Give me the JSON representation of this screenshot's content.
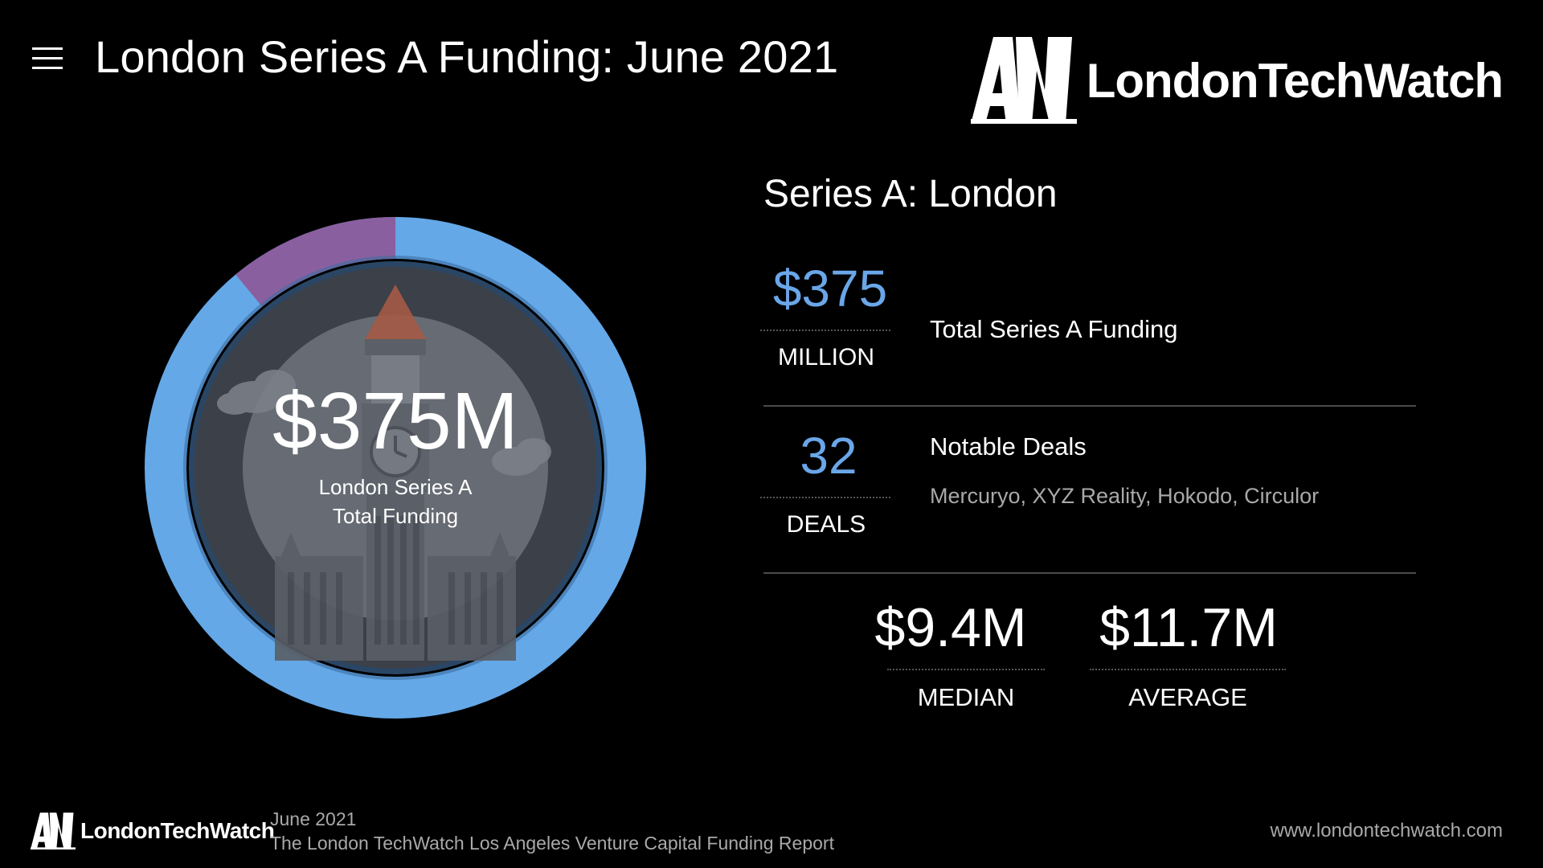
{
  "header": {
    "menu_icon": "hamburger-icon",
    "title": "London Series A Funding: June 2021",
    "brand_name": "LondonTechWatch"
  },
  "donut": {
    "value": "$375M",
    "label_line1": "London Series A",
    "label_line2": "Total Funding",
    "background_icon": "big-ben-icon",
    "ring_color": "#64a8e8",
    "segment_color": "#8a5fa0",
    "segment_fraction": 0.11
  },
  "stats": {
    "section_title": "Series A: London",
    "total": {
      "value": "$375",
      "unit": "MILLION",
      "description": "Total Series A Funding"
    },
    "deals": {
      "value": "32",
      "unit": "DEALS",
      "description": "Notable Deals",
      "notable": "Mercuryo, XYZ Reality, Hokodo, Circulor"
    },
    "median": {
      "value": "$9.4M",
      "label": "MEDIAN"
    },
    "average": {
      "value": "$11.7M",
      "label": "AVERAGE"
    }
  },
  "footer": {
    "brand_name": "LondonTechWatch",
    "date": "June 2021",
    "report": "The London TechWatch Los Angeles Venture Capital Funding Report",
    "url": "www.londontechwatch.com"
  },
  "colors": {
    "accent_blue": "#6aa6e8",
    "background": "#000000",
    "muted_text": "#a9a9a9"
  }
}
